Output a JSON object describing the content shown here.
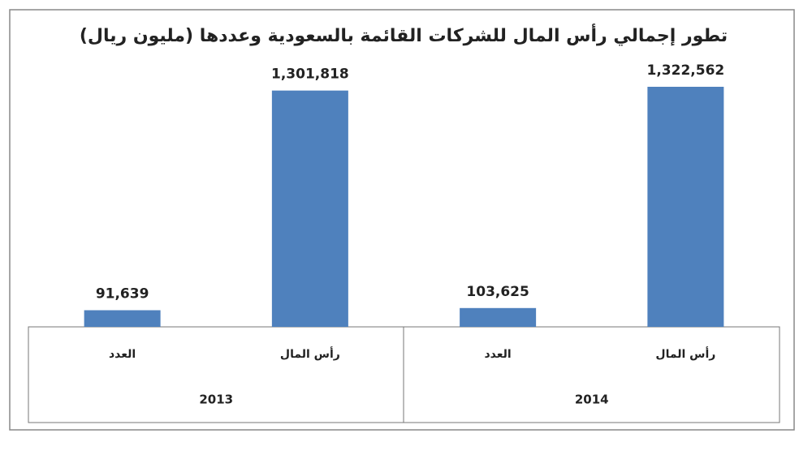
{
  "chart_data": {
    "type": "bar",
    "title": "تطور إجمالي رأس المال للشركات القائمة بالسعودية وعددها (مليون ريال)",
    "groups": [
      "2013",
      "2014"
    ],
    "categories": [
      "العدد",
      "رأس المال",
      "العدد",
      "رأس المال"
    ],
    "values": [
      91639,
      1301818,
      103625,
      1322562
    ],
    "value_labels": [
      "91,639",
      "1,301,818",
      "103,625",
      "1,322,562"
    ],
    "color": "#4f81bd"
  }
}
